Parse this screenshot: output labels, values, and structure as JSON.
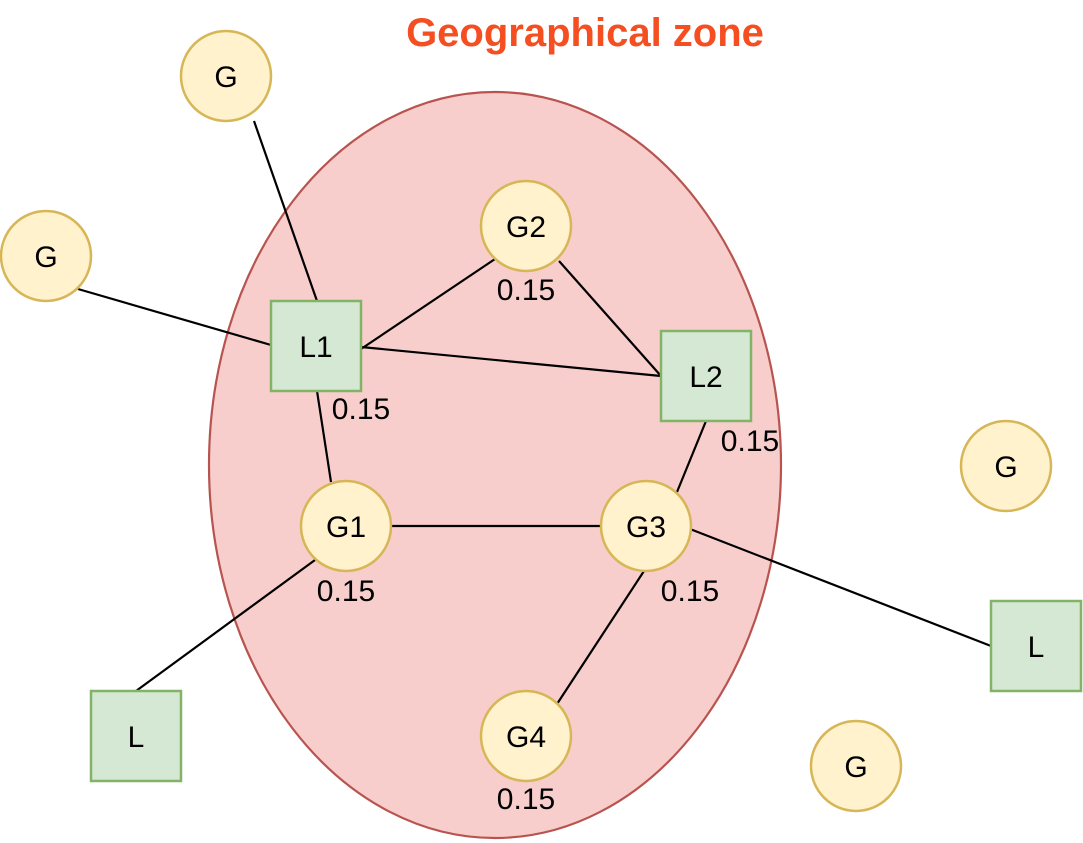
{
  "title": "Geographical zone",
  "colors": {
    "title": "#f44e21",
    "zone_fill": "#f8cecc",
    "zone_stroke": "#b85450",
    "generator_fill": "#fff2cc",
    "generator_stroke": "#d6b656",
    "load_fill": "#d5e8d4",
    "load_stroke": "#82b366",
    "edge": "#000000"
  },
  "nodes": [
    {
      "id": "g_top",
      "type": "generator",
      "label": "G"
    },
    {
      "id": "g_left",
      "type": "generator",
      "label": "G"
    },
    {
      "id": "g2",
      "type": "generator",
      "label": "G2"
    },
    {
      "id": "l1",
      "type": "load",
      "label": "L1"
    },
    {
      "id": "l2",
      "type": "load",
      "label": "L2"
    },
    {
      "id": "g1",
      "type": "generator",
      "label": "G1"
    },
    {
      "id": "g3",
      "type": "generator",
      "label": "G3"
    },
    {
      "id": "g4",
      "type": "generator",
      "label": "G4"
    },
    {
      "id": "g_right",
      "type": "generator",
      "label": "G"
    },
    {
      "id": "l_right",
      "type": "load",
      "label": "L"
    },
    {
      "id": "l_bottom_left",
      "type": "load",
      "label": "L"
    },
    {
      "id": "g_bottom_right",
      "type": "generator",
      "label": "G"
    }
  ],
  "edges": [
    {
      "from": "g_top",
      "to": "l1"
    },
    {
      "from": "g_left",
      "to": "l1"
    },
    {
      "from": "l1",
      "to": "g2"
    },
    {
      "from": "l1",
      "to": "l2"
    },
    {
      "from": "g2",
      "to": "l2"
    },
    {
      "from": "l1",
      "to": "g1"
    },
    {
      "from": "g1",
      "to": "g3"
    },
    {
      "from": "l2",
      "to": "g3"
    },
    {
      "from": "g1",
      "to": "l_bottom_left"
    },
    {
      "from": "g3",
      "to": "l_right"
    },
    {
      "from": "g3",
      "to": "g4"
    }
  ],
  "weights": [
    {
      "id": "w_g2",
      "text": "0.15"
    },
    {
      "id": "w_l1",
      "text": "0.15"
    },
    {
      "id": "w_l2",
      "text": "0.15"
    },
    {
      "id": "w_g1",
      "text": "0.15"
    },
    {
      "id": "w_g3",
      "text": "0.15"
    },
    {
      "id": "w_g4",
      "text": "0.15"
    }
  ]
}
